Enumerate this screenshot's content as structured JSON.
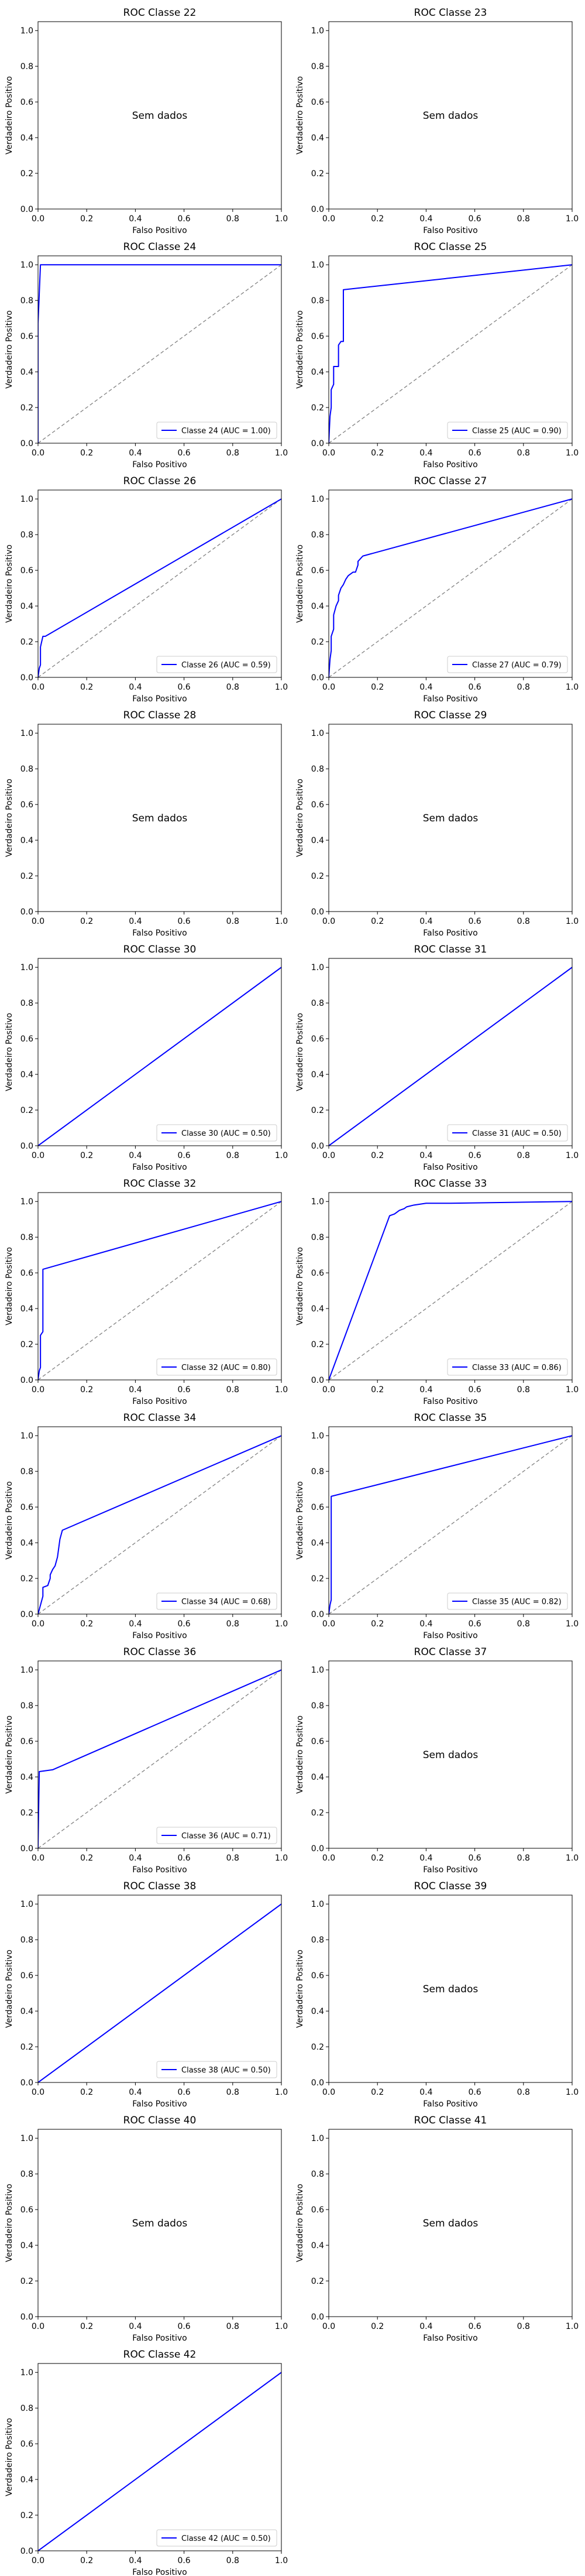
{
  "figure": {
    "xlabel": "Falso Positivo",
    "ylabel": "Verdadeiro Positivo",
    "no_data_text": "Sem dados",
    "xticks": [
      "0.0",
      "0.2",
      "0.4",
      "0.6",
      "0.8",
      "1.0"
    ],
    "yticks": [
      "0.0",
      "0.2",
      "0.4",
      "0.6",
      "0.8",
      "1.0"
    ],
    "curve_color": "#0000ff",
    "diagonal_color": "#808080"
  },
  "chart_data": [
    {
      "type": "line",
      "title": "ROC Classe 22",
      "no_data": true,
      "xlim": [
        0,
        1
      ],
      "ylim": [
        0,
        1.05
      ]
    },
    {
      "type": "line",
      "title": "ROC Classe 23",
      "no_data": true,
      "xlim": [
        0,
        1
      ],
      "ylim": [
        0,
        1.05
      ]
    },
    {
      "type": "line",
      "title": "ROC Classe 24",
      "legend": "Classe 24 (AUC = 1.00)",
      "legend_position": "lower right",
      "xlim": [
        0,
        1
      ],
      "ylim": [
        0,
        1.05
      ],
      "x": [
        0,
        0,
        0.01,
        1
      ],
      "y": [
        0,
        0.67,
        1,
        1
      ]
    },
    {
      "type": "line",
      "title": "ROC Classe 25",
      "legend": "Classe 25 (AUC = 0.90)",
      "legend_position": "lower right",
      "xlim": [
        0,
        1
      ],
      "ylim": [
        0,
        1.05
      ],
      "x": [
        0,
        0.005,
        0.01,
        0.01,
        0.02,
        0.02,
        0.04,
        0.04,
        0.05,
        0.06,
        0.06,
        1
      ],
      "y": [
        0,
        0.15,
        0.2,
        0.3,
        0.33,
        0.43,
        0.43,
        0.55,
        0.57,
        0.57,
        0.86,
        1
      ]
    },
    {
      "type": "line",
      "title": "ROC Classe 26",
      "legend": "Classe 26 (AUC = 0.59)",
      "legend_position": "lower right",
      "xlim": [
        0,
        1
      ],
      "ylim": [
        0,
        1.05
      ],
      "x": [
        0,
        0.005,
        0.01,
        0.01,
        0.02,
        0.03,
        1
      ],
      "y": [
        0,
        0.05,
        0.07,
        0.17,
        0.23,
        0.23,
        1
      ]
    },
    {
      "type": "line",
      "title": "ROC Classe 27",
      "legend": "Classe 27 (AUC = 0.79)",
      "legend_position": "lower right",
      "xlim": [
        0,
        1
      ],
      "ylim": [
        0,
        1.05
      ],
      "x": [
        0,
        0.005,
        0.01,
        0.01,
        0.02,
        0.02,
        0.03,
        0.04,
        0.04,
        0.05,
        0.06,
        0.07,
        0.08,
        0.1,
        0.11,
        0.12,
        0.12,
        0.14,
        1
      ],
      "y": [
        0,
        0.1,
        0.15,
        0.23,
        0.27,
        0.35,
        0.4,
        0.43,
        0.46,
        0.5,
        0.52,
        0.55,
        0.57,
        0.59,
        0.59,
        0.63,
        0.65,
        0.68,
        1
      ]
    },
    {
      "type": "line",
      "title": "ROC Classe 28",
      "no_data": true,
      "xlim": [
        0,
        1
      ],
      "ylim": [
        0,
        1.05
      ]
    },
    {
      "type": "line",
      "title": "ROC Classe 29",
      "no_data": true,
      "xlim": [
        0,
        1
      ],
      "ylim": [
        0,
        1.05
      ]
    },
    {
      "type": "line",
      "title": "ROC Classe 30",
      "legend": "Classe 30 (AUC = 0.50)",
      "legend_position": "lower right",
      "xlim": [
        0,
        1
      ],
      "ylim": [
        0,
        1.05
      ],
      "x": [
        0,
        1
      ],
      "y": [
        0,
        1
      ]
    },
    {
      "type": "line",
      "title": "ROC Classe 31",
      "legend": "Classe 31 (AUC = 0.50)",
      "legend_position": "lower right",
      "xlim": [
        0,
        1
      ],
      "ylim": [
        0,
        1.05
      ],
      "x": [
        0,
        1
      ],
      "y": [
        0,
        1
      ]
    },
    {
      "type": "line",
      "title": "ROC Classe 32",
      "legend": "Classe 32 (AUC = 0.80)",
      "legend_position": "lower right",
      "xlim": [
        0,
        1
      ],
      "ylim": [
        0,
        1.05
      ],
      "x": [
        0,
        0.005,
        0.01,
        0.01,
        0.02,
        0.02,
        1
      ],
      "y": [
        0,
        0.05,
        0.07,
        0.25,
        0.27,
        0.62,
        1
      ]
    },
    {
      "type": "line",
      "title": "ROC Classe 33",
      "legend": "Classe 33 (AUC = 0.86)",
      "legend_position": "lower right",
      "xlim": [
        0,
        1
      ],
      "ylim": [
        0,
        1.05
      ],
      "x": [
        0,
        0.25,
        0.27,
        0.28,
        0.29,
        0.31,
        0.32,
        0.35,
        0.4,
        0.5,
        1
      ],
      "y": [
        0,
        0.92,
        0.93,
        0.94,
        0.95,
        0.96,
        0.97,
        0.98,
        0.99,
        0.99,
        1
      ]
    },
    {
      "type": "line",
      "title": "ROC Classe 34",
      "legend": "Classe 34 (AUC = 0.68)",
      "legend_position": "lower right",
      "xlim": [
        0,
        1
      ],
      "ylim": [
        0,
        1.05
      ],
      "x": [
        0,
        0.01,
        0.02,
        0.02,
        0.04,
        0.05,
        0.05,
        0.06,
        0.07,
        0.08,
        0.09,
        0.1,
        1
      ],
      "y": [
        0,
        0.05,
        0.1,
        0.15,
        0.16,
        0.2,
        0.22,
        0.25,
        0.27,
        0.32,
        0.42,
        0.47,
        1
      ]
    },
    {
      "type": "line",
      "title": "ROC Classe 35",
      "legend": "Classe 35 (AUC = 0.82)",
      "legend_position": "lower right",
      "xlim": [
        0,
        1
      ],
      "ylim": [
        0,
        1.05
      ],
      "x": [
        0,
        0.005,
        0.01,
        0.01,
        1
      ],
      "y": [
        0,
        0.05,
        0.08,
        0.66,
        1
      ]
    },
    {
      "type": "line",
      "title": "ROC Classe 36",
      "legend": "Classe 36 (AUC = 0.71)",
      "legend_position": "lower right",
      "xlim": [
        0,
        1
      ],
      "ylim": [
        0,
        1.05
      ],
      "x": [
        0,
        0.005,
        0.06,
        1
      ],
      "y": [
        0,
        0.43,
        0.44,
        1
      ]
    },
    {
      "type": "line",
      "title": "ROC Classe 37",
      "no_data": true,
      "xlim": [
        0,
        1
      ],
      "ylim": [
        0,
        1.05
      ]
    },
    {
      "type": "line",
      "title": "ROC Classe 38",
      "legend": "Classe 38 (AUC = 0.50)",
      "legend_position": "lower right",
      "xlim": [
        0,
        1
      ],
      "ylim": [
        0,
        1.05
      ],
      "x": [
        0,
        1
      ],
      "y": [
        0,
        1
      ]
    },
    {
      "type": "line",
      "title": "ROC Classe 39",
      "no_data": true,
      "xlim": [
        0,
        1
      ],
      "ylim": [
        0,
        1.05
      ]
    },
    {
      "type": "line",
      "title": "ROC Classe 40",
      "no_data": true,
      "xlim": [
        0,
        1
      ],
      "ylim": [
        0,
        1.05
      ]
    },
    {
      "type": "line",
      "title": "ROC Classe 41",
      "no_data": true,
      "xlim": [
        0,
        1
      ],
      "ylim": [
        0,
        1.05
      ]
    },
    {
      "type": "line",
      "title": "ROC Classe 42",
      "legend": "Classe 42 (AUC = 0.50)",
      "legend_position": "lower right",
      "xlim": [
        0,
        1
      ],
      "ylim": [
        0,
        1.05
      ],
      "x": [
        0,
        1
      ],
      "y": [
        0,
        1
      ]
    }
  ]
}
